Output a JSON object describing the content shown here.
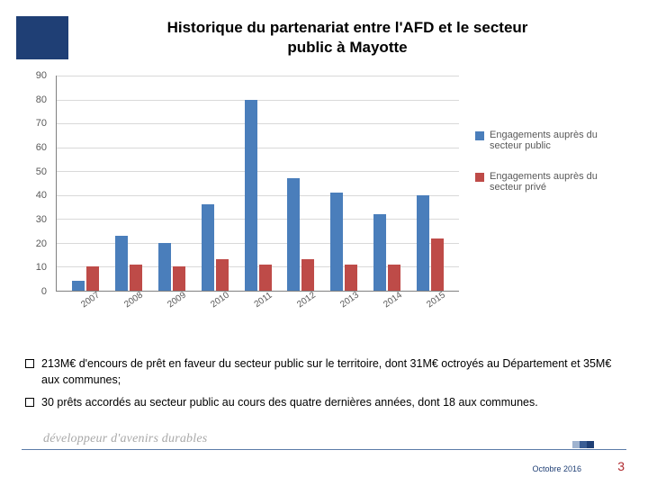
{
  "colors": {
    "header_block": "#1f3f75",
    "series_public": "#4a7ebb",
    "series_private": "#be4b48",
    "grid": "#d9d9d9",
    "axis": "#808080",
    "axis_text": "#595959",
    "footer_shade1": "#9fb3cf",
    "footer_shade2": "#3a5d94",
    "footer_shade3": "#1f3f75",
    "page_red": "#b02a2f"
  },
  "title": {
    "line1": "Historique du partenariat entre l'AFD et le secteur",
    "line2": "public à Mayotte"
  },
  "chart": {
    "ylim_max": 90,
    "ytick_step": 10,
    "categories": [
      "2007",
      "2008",
      "2009",
      "2010",
      "2011",
      "2012",
      "2013",
      "2014",
      "2015"
    ],
    "series": {
      "public": {
        "label": "Engagements auprès du secteur public",
        "values": [
          4,
          23,
          20,
          36,
          80,
          47,
          41,
          32,
          40
        ]
      },
      "private": {
        "label": "Engagements auprès du secteur privé",
        "values": [
          10,
          11,
          10,
          13,
          11,
          13,
          11,
          11,
          22
        ]
      }
    }
  },
  "bullets": {
    "b1": "213M€ d'encours de prêt en faveur du secteur public sur le territoire, dont 31M€ octroyés au Département et 35M€ aux communes;",
    "b2": "30 prêts accordés au secteur public au cours des quatre dernières années, dont 18 aux communes."
  },
  "footer": {
    "tagline": "développeur d'avenirs durables",
    "date": "Octobre 2016",
    "page": "3"
  }
}
